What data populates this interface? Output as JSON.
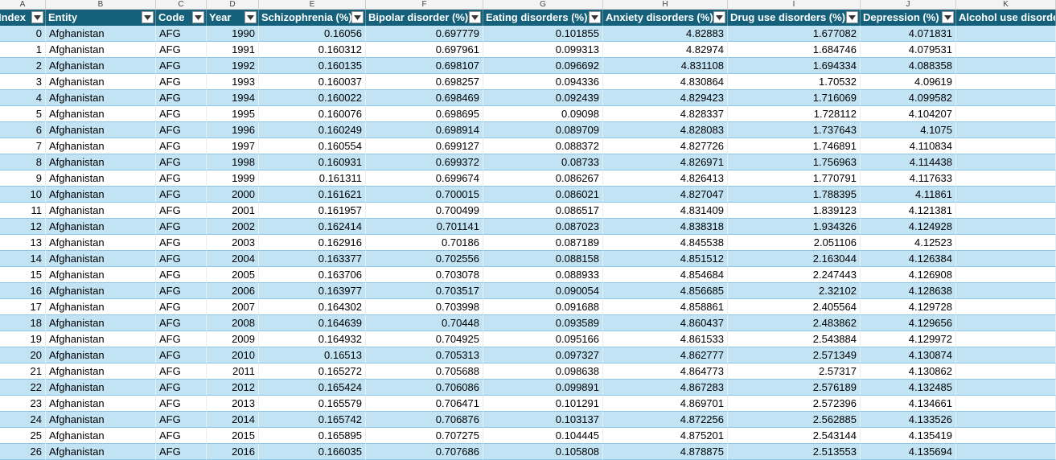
{
  "column_letters": [
    "A",
    "B",
    "C",
    "D",
    "E",
    "F",
    "G",
    "H",
    "I",
    "J",
    "K"
  ],
  "headers": [
    "Index",
    "Entity",
    "Code",
    "Year",
    "Schizophrenia (%)",
    "Bipolar disorder (%)",
    "Eating disorders (%)",
    "Anxiety disorders (%)",
    "Drug use disorders (%)",
    "Depression (%)",
    "Alcohol use disorders (%)"
  ],
  "header_band_color": "#15607a",
  "row_band_color": "#c1e3f4",
  "filter_icon": "dropdown-filter-icon",
  "rows": [
    [
      "0",
      "Afghanistan",
      "AFG",
      "1990",
      "0.16056",
      "0.697779",
      "0.101855",
      "4.82883",
      "1.677082",
      "4.071831",
      ""
    ],
    [
      "1",
      "Afghanistan",
      "AFG",
      "1991",
      "0.160312",
      "0.697961",
      "0.099313",
      "4.82974",
      "1.684746",
      "4.079531",
      ""
    ],
    [
      "2",
      "Afghanistan",
      "AFG",
      "1992",
      "0.160135",
      "0.698107",
      "0.096692",
      "4.831108",
      "1.694334",
      "4.088358",
      ""
    ],
    [
      "3",
      "Afghanistan",
      "AFG",
      "1993",
      "0.160037",
      "0.698257",
      "0.094336",
      "4.830864",
      "1.70532",
      "4.09619",
      ""
    ],
    [
      "4",
      "Afghanistan",
      "AFG",
      "1994",
      "0.160022",
      "0.698469",
      "0.092439",
      "4.829423",
      "1.716069",
      "4.099582",
      ""
    ],
    [
      "5",
      "Afghanistan",
      "AFG",
      "1995",
      "0.160076",
      "0.698695",
      "0.09098",
      "4.828337",
      "1.728112",
      "4.104207",
      ""
    ],
    [
      "6",
      "Afghanistan",
      "AFG",
      "1996",
      "0.160249",
      "0.698914",
      "0.089709",
      "4.828083",
      "1.737643",
      "4.1075",
      ""
    ],
    [
      "7",
      "Afghanistan",
      "AFG",
      "1997",
      "0.160554",
      "0.699127",
      "0.088372",
      "4.827726",
      "1.746891",
      "4.110834",
      ""
    ],
    [
      "8",
      "Afghanistan",
      "AFG",
      "1998",
      "0.160931",
      "0.699372",
      "0.08733",
      "4.826971",
      "1.756963",
      "4.114438",
      ""
    ],
    [
      "9",
      "Afghanistan",
      "AFG",
      "1999",
      "0.161311",
      "0.699674",
      "0.086267",
      "4.826413",
      "1.770791",
      "4.117633",
      ""
    ],
    [
      "10",
      "Afghanistan",
      "AFG",
      "2000",
      "0.161621",
      "0.700015",
      "0.086021",
      "4.827047",
      "1.788395",
      "4.11861",
      ""
    ],
    [
      "11",
      "Afghanistan",
      "AFG",
      "2001",
      "0.161957",
      "0.700499",
      "0.086517",
      "4.831409",
      "1.839123",
      "4.121381",
      ""
    ],
    [
      "12",
      "Afghanistan",
      "AFG",
      "2002",
      "0.162414",
      "0.701141",
      "0.087023",
      "4.838318",
      "1.934326",
      "4.124928",
      ""
    ],
    [
      "13",
      "Afghanistan",
      "AFG",
      "2003",
      "0.162916",
      "0.70186",
      "0.087189",
      "4.845538",
      "2.051106",
      "4.12523",
      ""
    ],
    [
      "14",
      "Afghanistan",
      "AFG",
      "2004",
      "0.163377",
      "0.702556",
      "0.088158",
      "4.851512",
      "2.163044",
      "4.126384",
      ""
    ],
    [
      "15",
      "Afghanistan",
      "AFG",
      "2005",
      "0.163706",
      "0.703078",
      "0.088933",
      "4.854684",
      "2.247443",
      "4.126908",
      ""
    ],
    [
      "16",
      "Afghanistan",
      "AFG",
      "2006",
      "0.163977",
      "0.703517",
      "0.090054",
      "4.856685",
      "2.32102",
      "4.128638",
      ""
    ],
    [
      "17",
      "Afghanistan",
      "AFG",
      "2007",
      "0.164302",
      "0.703998",
      "0.091688",
      "4.858861",
      "2.405564",
      "4.129728",
      ""
    ],
    [
      "18",
      "Afghanistan",
      "AFG",
      "2008",
      "0.164639",
      "0.70448",
      "0.093589",
      "4.860437",
      "2.483862",
      "4.129656",
      ""
    ],
    [
      "19",
      "Afghanistan",
      "AFG",
      "2009",
      "0.164932",
      "0.704925",
      "0.095166",
      "4.861533",
      "2.543884",
      "4.129972",
      ""
    ],
    [
      "20",
      "Afghanistan",
      "AFG",
      "2010",
      "0.16513",
      "0.705313",
      "0.097327",
      "4.862777",
      "2.571349",
      "4.130874",
      ""
    ],
    [
      "21",
      "Afghanistan",
      "AFG",
      "2011",
      "0.165272",
      "0.705688",
      "0.098638",
      "4.864773",
      "2.57317",
      "4.130862",
      ""
    ],
    [
      "22",
      "Afghanistan",
      "AFG",
      "2012",
      "0.165424",
      "0.706086",
      "0.099891",
      "4.867283",
      "2.576189",
      "4.132485",
      ""
    ],
    [
      "23",
      "Afghanistan",
      "AFG",
      "2013",
      "0.165579",
      "0.706471",
      "0.101291",
      "4.869701",
      "2.572396",
      "4.134661",
      ""
    ],
    [
      "24",
      "Afghanistan",
      "AFG",
      "2014",
      "0.165742",
      "0.706876",
      "0.103137",
      "4.872256",
      "2.562885",
      "4.133526",
      ""
    ],
    [
      "25",
      "Afghanistan",
      "AFG",
      "2015",
      "0.165895",
      "0.707275",
      "0.104445",
      "4.875201",
      "2.543144",
      "4.135419",
      ""
    ],
    [
      "26",
      "Afghanistan",
      "AFG",
      "2016",
      "0.166035",
      "0.707686",
      "0.105808",
      "4.878875",
      "2.513553",
      "4.135694",
      ""
    ]
  ]
}
